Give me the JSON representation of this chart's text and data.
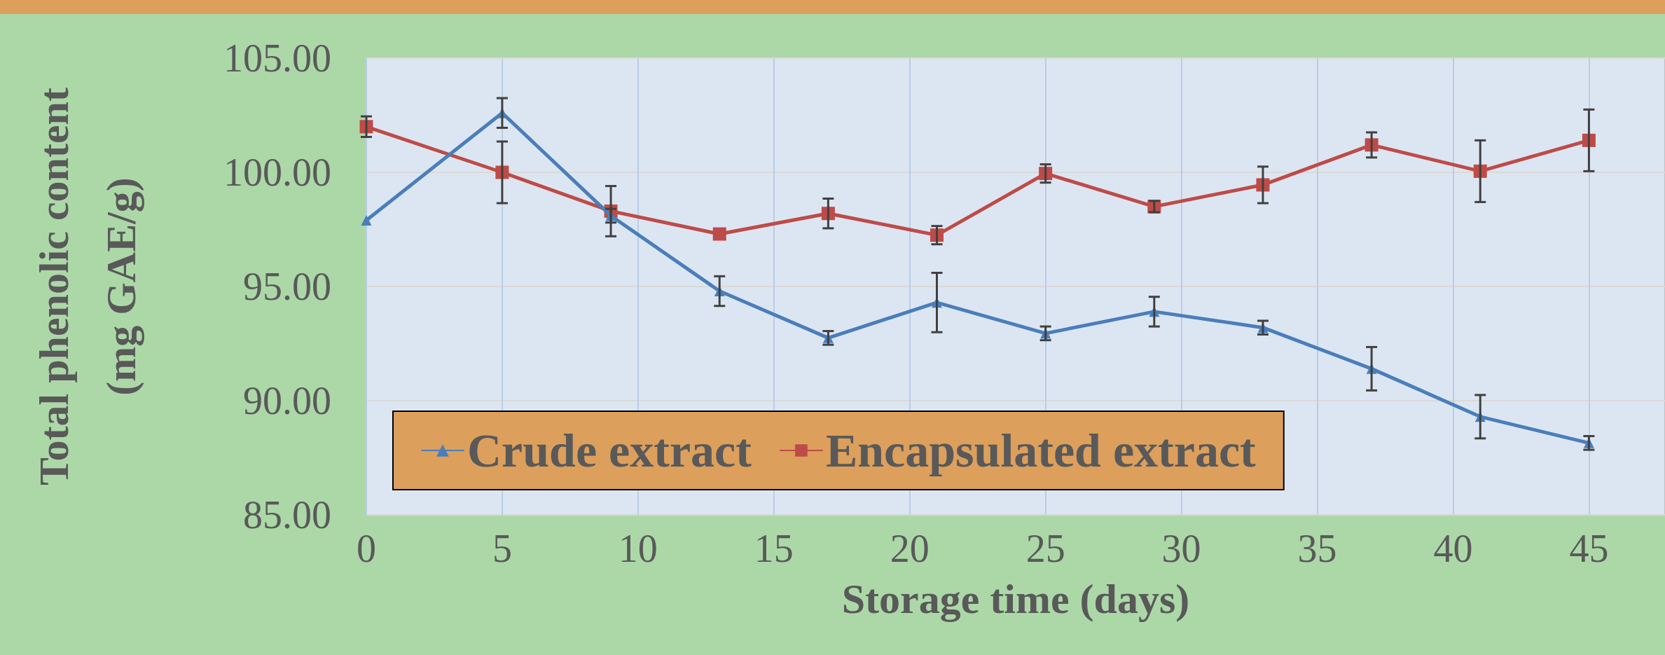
{
  "chart_data": {
    "type": "line",
    "xlabel": "Storage time (days)",
    "ylabel": "Total phenolic content\n(mg GAE/g)",
    "x": [
      0,
      5,
      9,
      13,
      17,
      21,
      25,
      29,
      33,
      37,
      41,
      45
    ],
    "xlim": [
      0,
      47.8
    ],
    "xticks": [
      0,
      5,
      10,
      15,
      20,
      25,
      30,
      35,
      40,
      45
    ],
    "ylim": [
      85,
      105
    ],
    "yticks": [
      {
        "value": 85,
        "label": "85.00"
      },
      {
        "value": 90,
        "label": "90.00"
      },
      {
        "value": 95,
        "label": "95.00"
      },
      {
        "value": 100,
        "label": "100.00"
      },
      {
        "value": 105,
        "label": "105.00"
      }
    ],
    "grid": true,
    "legend": "bottom left",
    "line_style": "solid",
    "series": [
      {
        "name": "Crude extract",
        "color": "#4a7ebb",
        "marker": "triangle",
        "values": [
          97.9,
          102.6,
          98.1,
          94.8,
          92.75,
          94.3,
          92.95,
          93.9,
          93.2,
          91.4,
          89.3,
          88.15
        ],
        "errors": [
          null,
          0.65,
          0.3,
          0.65,
          0.3,
          1.3,
          0.3,
          0.65,
          0.3,
          0.95,
          0.95,
          0.3
        ]
      },
      {
        "name": "Encapsulated extract",
        "color": "#be4b48",
        "marker": "square",
        "values": [
          102.0,
          100.0,
          98.3,
          97.3,
          98.2,
          97.25,
          99.95,
          98.5,
          99.45,
          101.2,
          100.05,
          101.4
        ],
        "errors": [
          0.45,
          1.35,
          1.1,
          null,
          0.65,
          0.4,
          0.4,
          0.25,
          0.8,
          0.55,
          1.35,
          1.35
        ]
      }
    ]
  }
}
